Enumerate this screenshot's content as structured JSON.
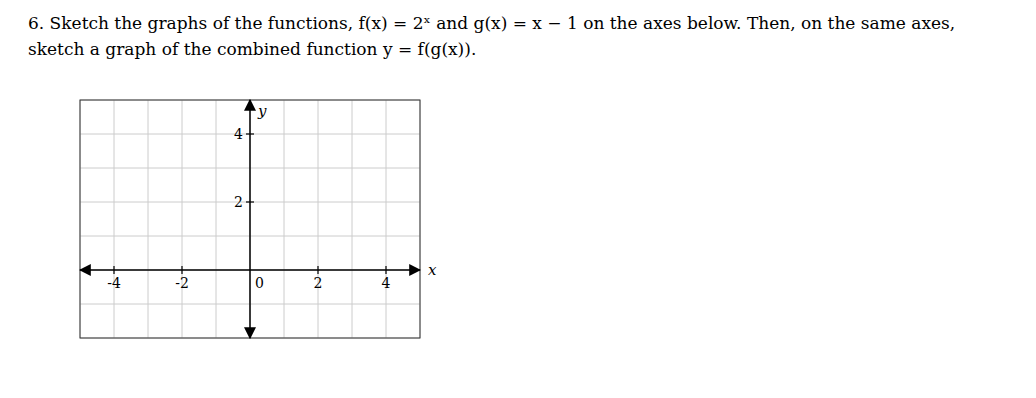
{
  "chart_data": {
    "type": "grid",
    "title": "6. Sketch the graphs of the functions, f(x) = 2ˣ and g(x) = x − 1 on the axes below. Then, on the same axes, sketch a graph of the combined function y = f(g(x)).",
    "x_label": "x",
    "y_label": "y",
    "xlim": [
      -5,
      5
    ],
    "ylim": [
      -2,
      5
    ],
    "xticks": [
      -4,
      -2,
      0,
      2,
      4
    ],
    "yticks": [
      2,
      4
    ],
    "grid": true
  }
}
